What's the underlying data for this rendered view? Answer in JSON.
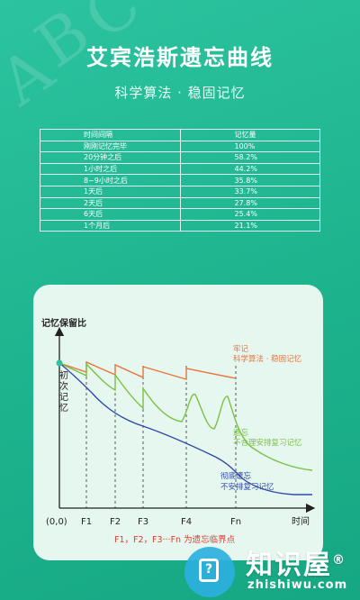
{
  "header": {
    "title": "艾宾浩斯遗忘曲线",
    "subtitle": "科学算法 · 稳固记忆",
    "bg_letters": [
      "A",
      "B",
      "C"
    ]
  },
  "table": {
    "headers": [
      "时间间隔",
      "记忆量"
    ],
    "rows": [
      [
        "刚刚记忆完毕",
        "100%"
      ],
      [
        "20分钟之后",
        "58.2%"
      ],
      [
        "1小时之后",
        "44.2%"
      ],
      [
        "8~9小时之后",
        "35.8%"
      ],
      [
        "1天后",
        "33.7%"
      ],
      [
        "2天后",
        "27.8%"
      ],
      [
        "6天后",
        "25.4%"
      ],
      [
        "1个月后",
        "21.1%"
      ]
    ]
  },
  "chart_data": {
    "type": "line",
    "ylabel": "记忆保留比",
    "xlabel": "时间",
    "x_ticks": [
      "(0,0)",
      "F1",
      "F2",
      "F3",
      "F4",
      "Fn"
    ],
    "start_label": "初次记忆",
    "footnote": "F1，F2，F3···Fn 为遗忘临界点",
    "series": [
      {
        "name": "牢记",
        "sub": "科学算法 · 稳固记忆",
        "color": "#e8743a"
      },
      {
        "name": "遗忘",
        "sub": "不合理安排复习记忆",
        "color": "#7ac143"
      },
      {
        "name": "彻底遗忘",
        "sub": "不安排复习记忆",
        "color": "#2f4aa8"
      }
    ],
    "colors": {
      "axis": "#222222",
      "footnote": "#e23b2e",
      "dot": "#2cc3a0"
    }
  },
  "watermark": {
    "name": "知识屋",
    "domain": "zhishiwu.com",
    "reg": "®",
    "icon": "?"
  }
}
